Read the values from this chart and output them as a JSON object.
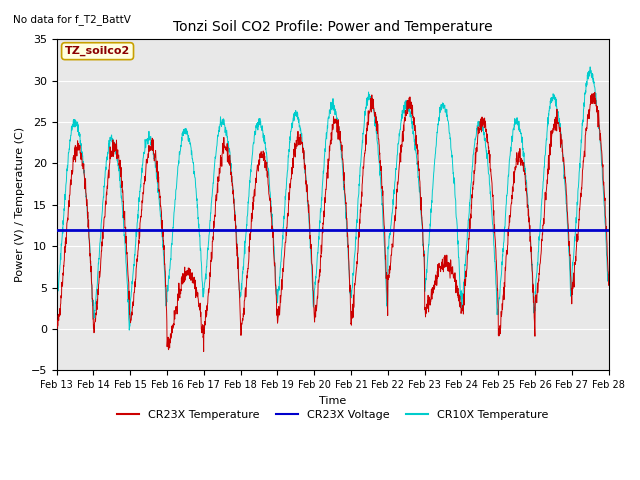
{
  "title": "Tonzi Soil CO2 Profile: Power and Temperature",
  "subtitle": "No data for f_T2_BattV",
  "ylabel": "Power (V) / Temperature (C)",
  "xlabel": "Time",
  "legend_box_label": "TZ_soilco2",
  "ylim": [
    -5,
    35
  ],
  "voltage_value": 12.0,
  "cr23x_color": "#cc0000",
  "cr10x_color": "#00cccc",
  "voltage_color": "#0000cc",
  "bg_color": "#e8e8e8",
  "legend_entries": [
    "CR23X Temperature",
    "CR23X Voltage",
    "CR10X Temperature"
  ],
  "n_days": 15,
  "start_day": 13,
  "figsize": [
    6.4,
    4.8
  ],
  "dpi": 100
}
